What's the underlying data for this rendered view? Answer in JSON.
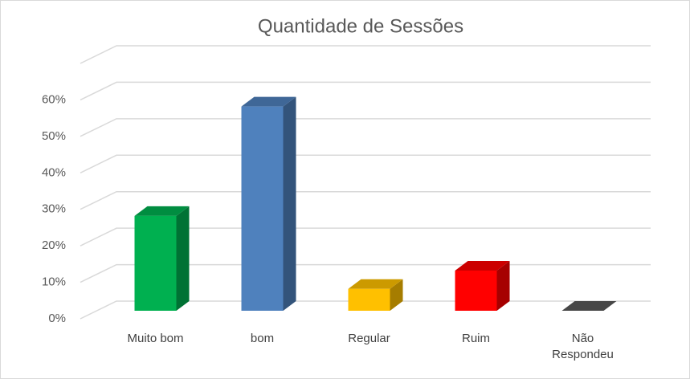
{
  "chart_data": {
    "type": "bar3d",
    "title": "Quantidade de Sessões",
    "categories": [
      "Muito bom",
      "bom",
      "Regular",
      "Ruim",
      "Não Respondeu"
    ],
    "values": [
      26,
      56,
      6,
      11,
      0
    ],
    "colors": [
      "#00b050",
      "#4f81bd",
      "#ffc000",
      "#ff0000",
      "#595959"
    ],
    "ylim": [
      0,
      70
    ],
    "yticks": [
      {
        "value": 0,
        "label": "0%"
      },
      {
        "value": 10,
        "label": "10%"
      },
      {
        "value": 20,
        "label": "20%"
      },
      {
        "value": 30,
        "label": "30%"
      },
      {
        "value": 40,
        "label": "40%"
      },
      {
        "value": 50,
        "label": "50%"
      },
      {
        "value": 60,
        "label": "60%"
      }
    ],
    "grid": true
  }
}
